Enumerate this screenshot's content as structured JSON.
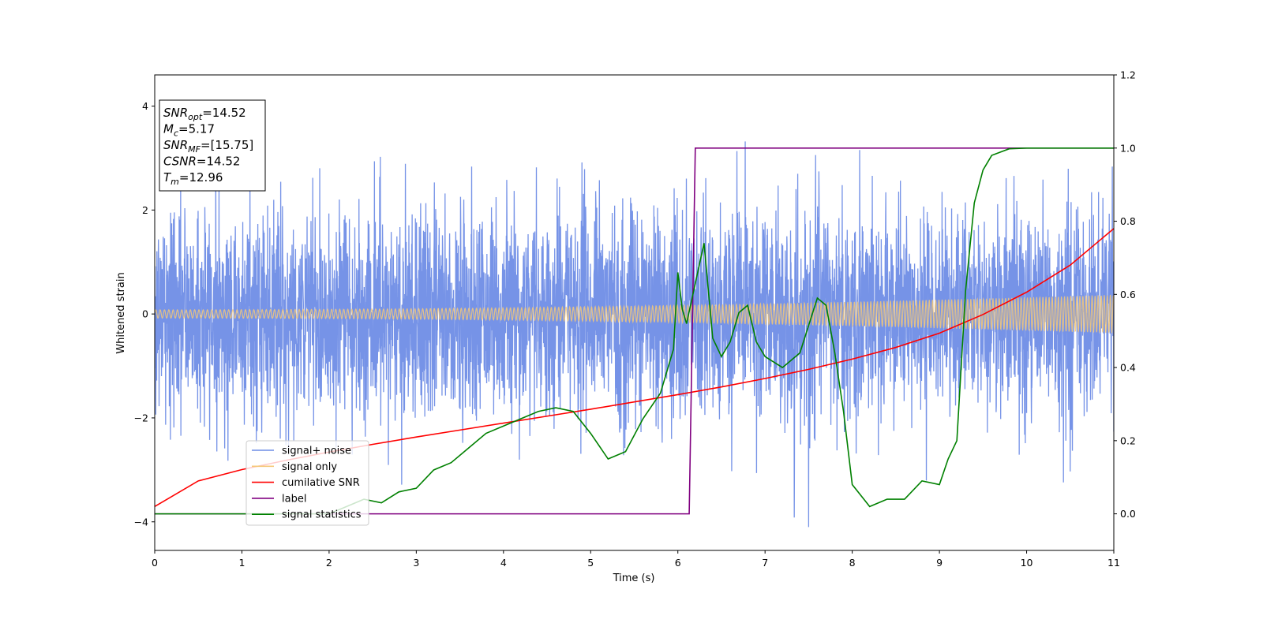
{
  "chart_data": {
    "type": "line",
    "xlabel": "Time (s)",
    "ylabel": "Whitened strain",
    "xlim": [
      0,
      11
    ],
    "ylim": [
      -4.55,
      4.6
    ],
    "y2lim": [
      -0.1,
      1.2
    ],
    "xticks": [
      "0",
      "1",
      "2",
      "3",
      "4",
      "5",
      "6",
      "7",
      "8",
      "9",
      "10",
      "11"
    ],
    "yticks": [
      "−4",
      "−2",
      "0",
      "2",
      "4"
    ],
    "y2ticks": [
      "0.0",
      "0.2",
      "0.4",
      "0.6",
      "0.8",
      "1.0",
      "1.2"
    ],
    "grid": false,
    "legend_position": "lower-left",
    "info_box": {
      "lines": [
        {
          "sym": "SNR",
          "sub": "opt",
          "text": "=14.52"
        },
        {
          "sym": "M",
          "sub": "c",
          "text": "=5.17"
        },
        {
          "sym": "SNR",
          "sub": "MF",
          "text": "=[15.75]"
        },
        {
          "sym": "CSNR",
          "sub": "",
          "text": "=14.52"
        },
        {
          "sym": "T",
          "sub": "m",
          "text": "=12.96"
        }
      ]
    },
    "series": [
      {
        "name": "signal+ noise",
        "color": "#6f8de6",
        "axis": "left",
        "description_noise_amplitude": 1.0
      },
      {
        "name": "signal only",
        "color": "#f5c878",
        "axis": "left",
        "amplitude_start": 0.08,
        "amplitude_end": 0.37
      },
      {
        "name": "cumilative SNR",
        "color": "#ff0000",
        "axis": "right",
        "x": [
          0,
          0.5,
          1,
          1.5,
          2,
          2.5,
          3,
          3.5,
          4,
          4.5,
          5,
          5.5,
          6,
          6.5,
          7,
          7.5,
          8,
          8.5,
          9,
          9.5,
          10,
          10.5,
          11
        ],
        "y": [
          0.02,
          0.09,
          0.121,
          0.146,
          0.169,
          0.19,
          0.21,
          0.229,
          0.248,
          0.267,
          0.286,
          0.306,
          0.326,
          0.347,
          0.37,
          0.395,
          0.423,
          0.455,
          0.494,
          0.545,
          0.606,
          0.68,
          0.78
        ]
      },
      {
        "name": "label",
        "color": "#800080",
        "axis": "right",
        "x": [
          0,
          6.13,
          6.2,
          11
        ],
        "y": [
          0,
          0,
          1,
          1
        ]
      },
      {
        "name": "signal statistics",
        "color": "#008000",
        "axis": "right",
        "x": [
          0,
          0.5,
          1,
          1.5,
          2,
          2.2,
          2.4,
          2.6,
          2.8,
          3,
          3.2,
          3.4,
          3.6,
          3.8,
          4,
          4.2,
          4.4,
          4.6,
          4.8,
          5,
          5.2,
          5.4,
          5.6,
          5.8,
          5.95,
          6,
          6.05,
          6.1,
          6.2,
          6.3,
          6.4,
          6.5,
          6.6,
          6.7,
          6.8,
          6.9,
          7.0,
          7.2,
          7.4,
          7.6,
          7.7,
          7.8,
          7.9,
          8.0,
          8.2,
          8.4,
          8.6,
          8.8,
          9.0,
          9.1,
          9.2,
          9.3,
          9.4,
          9.5,
          9.6,
          9.8,
          10,
          10.5,
          11
        ],
        "y": [
          0.0,
          0.0,
          0.0,
          0.0,
          0.0,
          0.02,
          0.04,
          0.03,
          0.06,
          0.07,
          0.12,
          0.14,
          0.18,
          0.22,
          0.24,
          0.26,
          0.28,
          0.29,
          0.28,
          0.22,
          0.15,
          0.17,
          0.26,
          0.33,
          0.45,
          0.66,
          0.56,
          0.52,
          0.63,
          0.74,
          0.48,
          0.43,
          0.47,
          0.55,
          0.57,
          0.47,
          0.43,
          0.4,
          0.44,
          0.59,
          0.57,
          0.44,
          0.28,
          0.08,
          0.02,
          0.04,
          0.04,
          0.09,
          0.08,
          0.15,
          0.2,
          0.61,
          0.85,
          0.94,
          0.98,
          0.998,
          1.0,
          1.0,
          1.0
        ]
      }
    ]
  }
}
